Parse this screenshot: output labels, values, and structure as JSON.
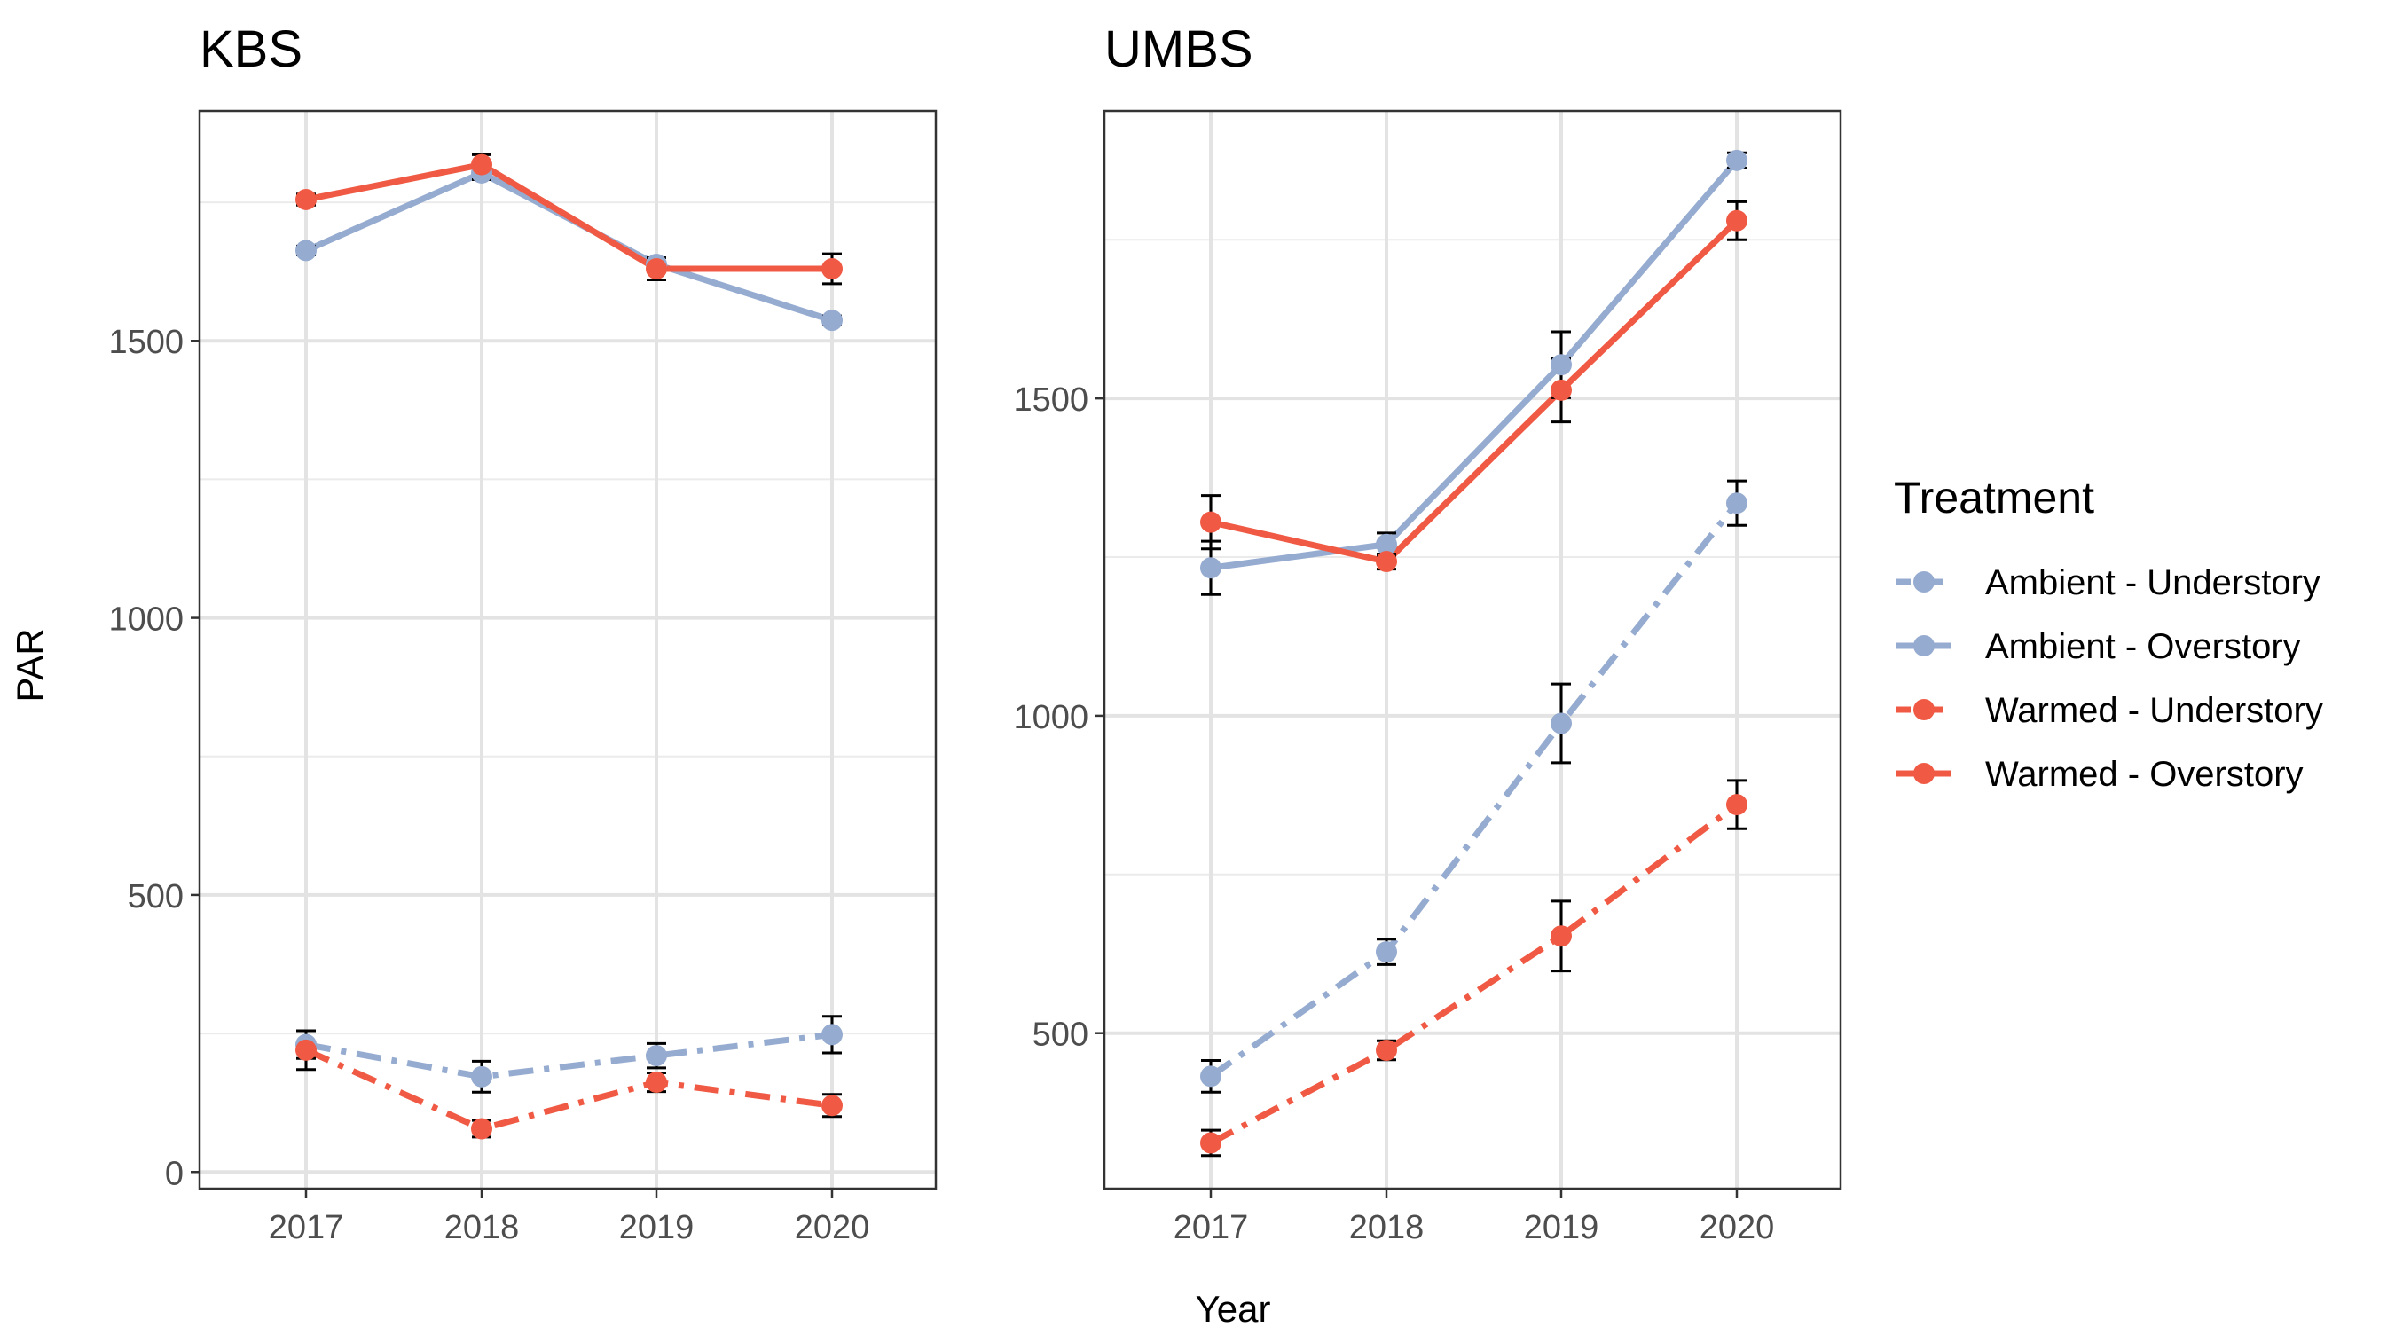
{
  "y_axis_label": "PAR",
  "x_axis_label": "Year",
  "legend": {
    "title": "Treatment",
    "entries": [
      {
        "label": "Ambient - Understory",
        "color": "#95abd0",
        "dash": "dashdot"
      },
      {
        "label": "Ambient - Overstory",
        "color": "#95abd0",
        "dash": "solid"
      },
      {
        "label": "Warmed - Understory",
        "color": "#f05a44",
        "dash": "dashdot"
      },
      {
        "label": "Warmed - Overstory",
        "color": "#f05a44",
        "dash": "solid"
      }
    ]
  },
  "chart_data": [
    {
      "type": "line",
      "title": "KBS",
      "x": [
        "2017",
        "2018",
        "2019",
        "2020"
      ],
      "xlabel": "Year",
      "ylabel": "PAR",
      "ylim": [
        -30,
        1915
      ],
      "yticks": [
        0,
        500,
        1000,
        1500
      ],
      "grid": true,
      "series": [
        {
          "name": "Ambient - Understory",
          "color": "#95abd0",
          "dash": "dashdot",
          "values": [
            230,
            172,
            210,
            248
          ],
          "errors": [
            25,
            28,
            22,
            33
          ]
        },
        {
          "name": "Ambient - Overstory",
          "color": "#95abd0",
          "dash": "solid",
          "values": [
            1663,
            1803,
            1638,
            1537
          ],
          "errors": [
            8,
            12,
            12,
            8
          ]
        },
        {
          "name": "Warmed - Understory",
          "color": "#f05a44",
          "dash": "dashdot",
          "values": [
            220,
            78,
            162,
            120
          ],
          "errors": [
            35,
            15,
            17,
            20
          ]
        },
        {
          "name": "Warmed - Overstory",
          "color": "#f05a44",
          "dash": "solid",
          "values": [
            1755,
            1818,
            1630,
            1630
          ],
          "errors": [
            10,
            18,
            20,
            27
          ]
        }
      ]
    },
    {
      "type": "line",
      "title": "UMBS",
      "x": [
        "2017",
        "2018",
        "2019",
        "2020"
      ],
      "xlabel": "Year",
      "ylabel": "PAR",
      "ylim": [
        255,
        1953
      ],
      "yticks": [
        500,
        1000,
        1500
      ],
      "grid": true,
      "series": [
        {
          "name": "Ambient - Understory",
          "color": "#95abd0",
          "dash": "dashdot",
          "values": [
            432,
            628,
            988,
            1335
          ],
          "errors": [
            25,
            20,
            62,
            35
          ]
        },
        {
          "name": "Ambient - Overstory",
          "color": "#95abd0",
          "dash": "solid",
          "values": [
            1233,
            1270,
            1553,
            1875
          ],
          "errors": [
            42,
            18,
            52,
            12
          ]
        },
        {
          "name": "Warmed - Understory",
          "color": "#f05a44",
          "dash": "dashdot",
          "values": [
            327,
            473,
            653,
            860
          ],
          "errors": [
            20,
            15,
            55,
            38
          ]
        },
        {
          "name": "Warmed - Overstory",
          "color": "#f05a44",
          "dash": "solid",
          "values": [
            1305,
            1243,
            1513,
            1780
          ],
          "errors": [
            42,
            12,
            50,
            30
          ]
        }
      ]
    }
  ]
}
